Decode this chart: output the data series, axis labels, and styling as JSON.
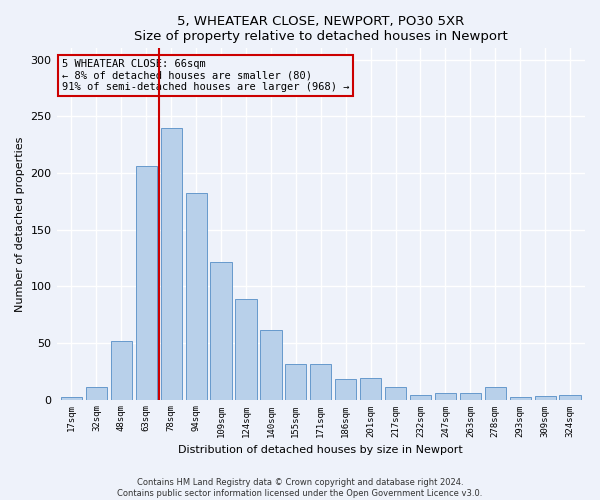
{
  "title": "5, WHEATEAR CLOSE, NEWPORT, PO30 5XR",
  "subtitle": "Size of property relative to detached houses in Newport",
  "xlabel": "Distribution of detached houses by size in Newport",
  "ylabel": "Number of detached properties",
  "categories": [
    "17sqm",
    "32sqm",
    "48sqm",
    "63sqm",
    "78sqm",
    "94sqm",
    "109sqm",
    "124sqm",
    "140sqm",
    "155sqm",
    "171sqm",
    "186sqm",
    "201sqm",
    "217sqm",
    "232sqm",
    "247sqm",
    "263sqm",
    "278sqm",
    "293sqm",
    "309sqm",
    "324sqm"
  ],
  "values": [
    2,
    11,
    52,
    206,
    240,
    182,
    121,
    89,
    61,
    31,
    31,
    18,
    19,
    11,
    4,
    6,
    6,
    11,
    2,
    3,
    4
  ],
  "bar_color": "#b8d0ea",
  "bar_edge_color": "#6699cc",
  "vline_x_index": 3,
  "vline_color": "#cc0000",
  "annotation_text": "5 WHEATEAR CLOSE: 66sqm\n← 8% of detached houses are smaller (80)\n91% of semi-detached houses are larger (968) →",
  "annotation_box_color": "#cc0000",
  "ylim": [
    0,
    310
  ],
  "yticks": [
    0,
    50,
    100,
    150,
    200,
    250,
    300
  ],
  "background_color": "#eef2fa",
  "grid_color": "#ffffff",
  "footer_line1": "Contains HM Land Registry data © Crown copyright and database right 2024.",
  "footer_line2": "Contains public sector information licensed under the Open Government Licence v3.0."
}
